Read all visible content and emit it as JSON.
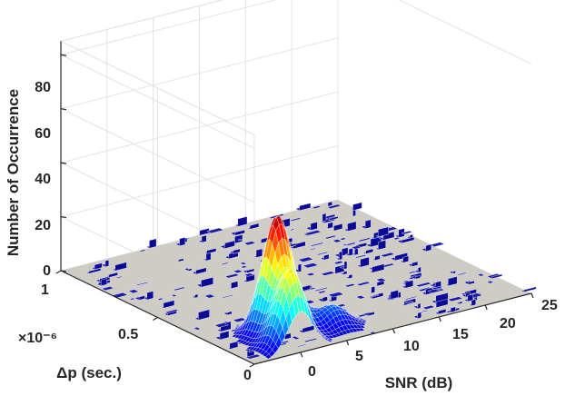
{
  "chart_data": {
    "type": "surface3d",
    "zlabel": "Number of Occurrence",
    "xlabel": "SNR (dB)",
    "ylabel": "Δp (sec.)",
    "y_exponent": "×10⁻⁶",
    "xlim": [
      -5,
      25
    ],
    "ylim": [
      0,
      1e-06
    ],
    "zlim": [
      0,
      85
    ],
    "x_ticks": [
      "0",
      "5",
      "10",
      "15",
      "20",
      "25"
    ],
    "y_ticks": [
      "0",
      "0.5",
      "1"
    ],
    "z_ticks": [
      "0",
      "20",
      "40",
      "60",
      "80"
    ],
    "grid": true,
    "colormap": "jet",
    "peaks": [
      {
        "snr": 1,
        "dp": 0.17,
        "count": 41
      },
      {
        "snr": 0,
        "dp": 0.05,
        "count": 28
      },
      {
        "snr": 3,
        "dp": 0.22,
        "count": 12
      },
      {
        "snr": 6,
        "dp": 0.12,
        "count": 8
      }
    ]
  }
}
